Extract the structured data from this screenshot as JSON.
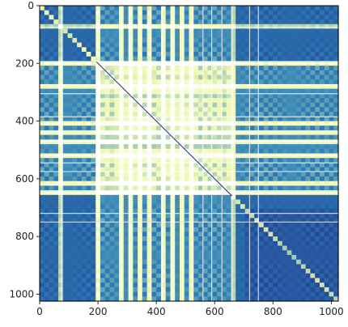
{
  "chart_data": {
    "type": "heatmap",
    "title": "",
    "xlabel": "",
    "ylabel": "",
    "x_range": [
      0,
      1024
    ],
    "y_range": [
      0,
      1024
    ],
    "y_inverted": true,
    "x_ticks": [
      0,
      200,
      400,
      600,
      800,
      1000
    ],
    "y_ticks": [
      0,
      200,
      400,
      600,
      800,
      1000
    ],
    "colormap": "YlGnBu",
    "colors": {
      "low": "#263d8f",
      "mid": "#2c7fb8",
      "high": "#edf8b1",
      "max": "#ffffff"
    },
    "value_range": [
      0,
      1
    ],
    "block_structure": {
      "central_block": [
        195,
        660
      ],
      "bright_stripes_y": [
        75,
        200,
        275,
        305,
        385,
        410,
        440,
        470,
        520,
        545,
        575,
        620,
        650,
        720,
        750
      ],
      "bright_stripes_x": [
        75,
        200,
        280,
        310,
        345,
        380,
        420,
        455,
        490,
        525,
        560,
        590,
        625,
        660,
        720,
        750
      ]
    }
  }
}
